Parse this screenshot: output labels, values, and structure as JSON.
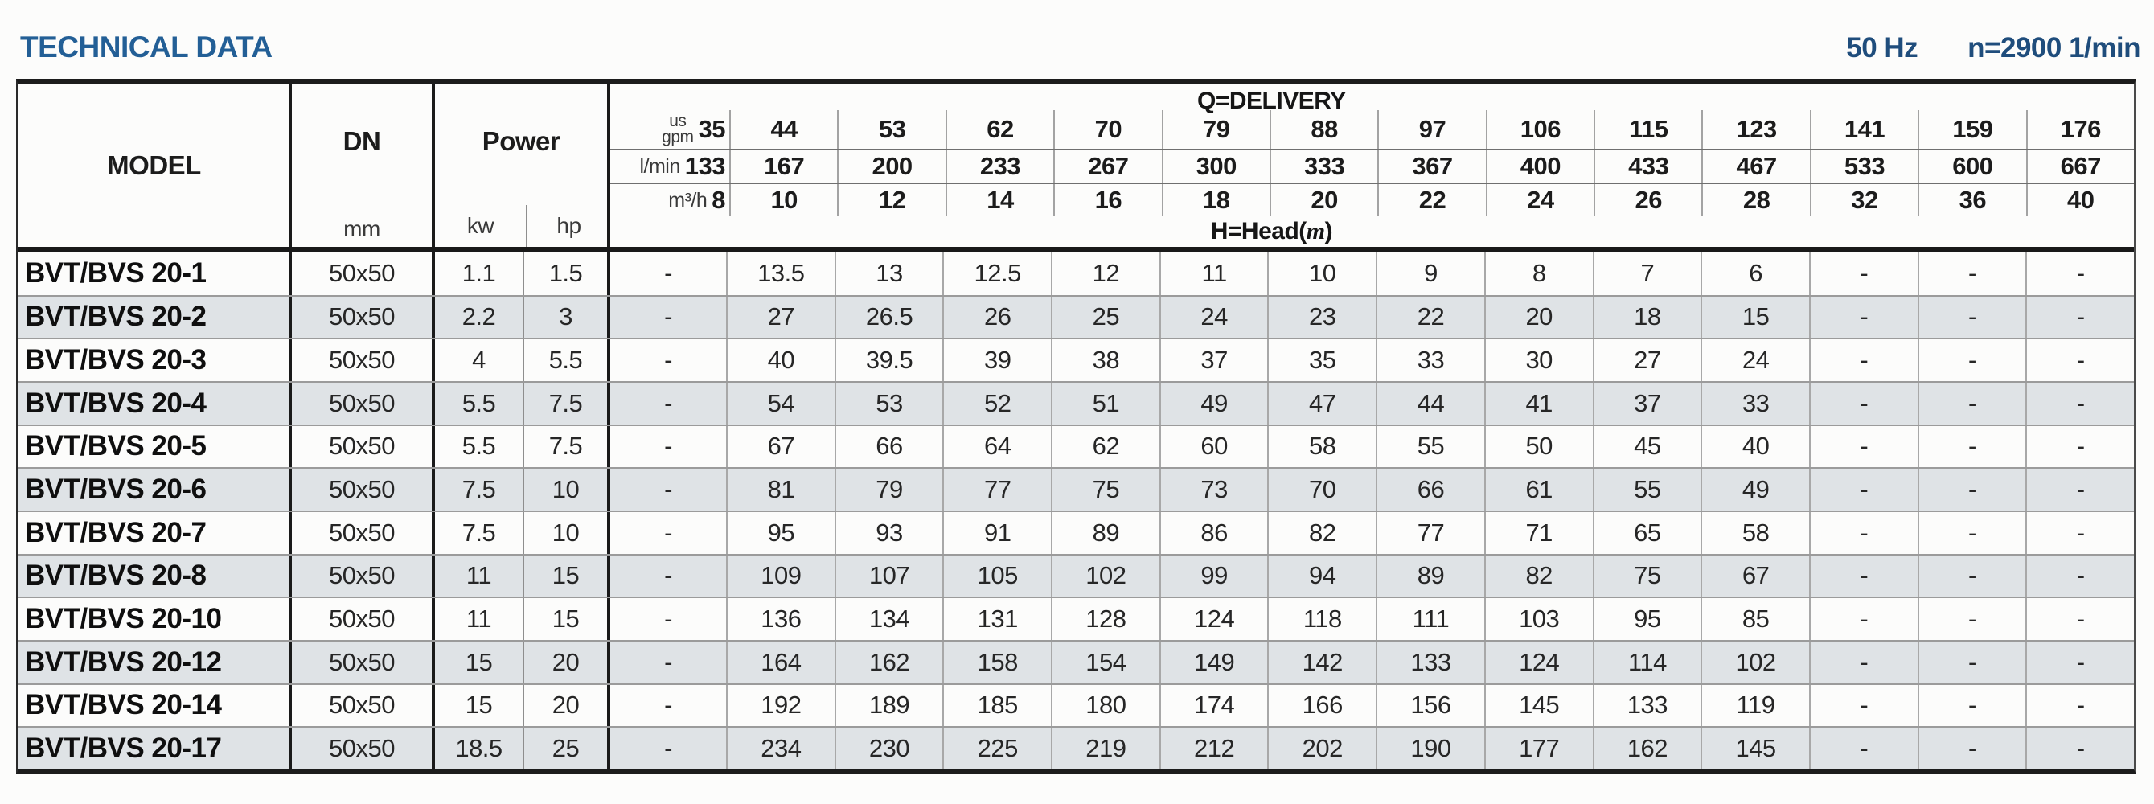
{
  "page": {
    "title": "TECHNICAL DATA",
    "frequency": "50 Hz",
    "speed": "n=2900 1/min"
  },
  "table": {
    "columns": {
      "model": "MODEL",
      "dn": "DN",
      "dn_unit": "mm",
      "power": "Power",
      "power_units": [
        "kw",
        "hp"
      ]
    },
    "delivery": {
      "label": "Q=DELIVERY",
      "head_label_prefix": "H=Head(",
      "head_label_unit": "m",
      "head_label_suffix": ")",
      "unit_rows": [
        {
          "unit_line1": "us",
          "unit_line2": "gpm",
          "values": [
            "35",
            "44",
            "53",
            "62",
            "70",
            "79",
            "88",
            "97",
            "106",
            "115",
            "123",
            "141",
            "159",
            "176"
          ]
        },
        {
          "unit": "l/min",
          "values": [
            "133",
            "167",
            "200",
            "233",
            "267",
            "300",
            "333",
            "367",
            "400",
            "433",
            "467",
            "533",
            "600",
            "667"
          ]
        },
        {
          "unit": "m³/h",
          "values": [
            "8",
            "10",
            "12",
            "14",
            "16",
            "18",
            "20",
            "22",
            "24",
            "26",
            "28",
            "32",
            "36",
            "40"
          ]
        }
      ]
    },
    "rows": [
      {
        "model": "BVT/BVS 20-1",
        "dn": "50x50",
        "kw": "1.1",
        "hp": "1.5",
        "head": [
          "-",
          "13.5",
          "13",
          "12.5",
          "12",
          "11",
          "10",
          "9",
          "8",
          "7",
          "6",
          "-",
          "-",
          "-"
        ]
      },
      {
        "model": "BVT/BVS 20-2",
        "dn": "50x50",
        "kw": "2.2",
        "hp": "3",
        "head": [
          "-",
          "27",
          "26.5",
          "26",
          "25",
          "24",
          "23",
          "22",
          "20",
          "18",
          "15",
          "-",
          "-",
          "-"
        ]
      },
      {
        "model": "BVT/BVS 20-3",
        "dn": "50x50",
        "kw": "4",
        "hp": "5.5",
        "head": [
          "-",
          "40",
          "39.5",
          "39",
          "38",
          "37",
          "35",
          "33",
          "30",
          "27",
          "24",
          "-",
          "-",
          "-"
        ]
      },
      {
        "model": "BVT/BVS 20-4",
        "dn": "50x50",
        "kw": "5.5",
        "hp": "7.5",
        "head": [
          "-",
          "54",
          "53",
          "52",
          "51",
          "49",
          "47",
          "44",
          "41",
          "37",
          "33",
          "-",
          "-",
          "-"
        ]
      },
      {
        "model": "BVT/BVS 20-5",
        "dn": "50x50",
        "kw": "5.5",
        "hp": "7.5",
        "head": [
          "-",
          "67",
          "66",
          "64",
          "62",
          "60",
          "58",
          "55",
          "50",
          "45",
          "40",
          "-",
          "-",
          "-"
        ]
      },
      {
        "model": "BVT/BVS 20-6",
        "dn": "50x50",
        "kw": "7.5",
        "hp": "10",
        "head": [
          "-",
          "81",
          "79",
          "77",
          "75",
          "73",
          "70",
          "66",
          "61",
          "55",
          "49",
          "-",
          "-",
          "-"
        ]
      },
      {
        "model": "BVT/BVS 20-7",
        "dn": "50x50",
        "kw": "7.5",
        "hp": "10",
        "head": [
          "-",
          "95",
          "93",
          "91",
          "89",
          "86",
          "82",
          "77",
          "71",
          "65",
          "58",
          "-",
          "-",
          "-"
        ]
      },
      {
        "model": "BVT/BVS 20-8",
        "dn": "50x50",
        "kw": "11",
        "hp": "15",
        "head": [
          "-",
          "109",
          "107",
          "105",
          "102",
          "99",
          "94",
          "89",
          "82",
          "75",
          "67",
          "-",
          "-",
          "-"
        ]
      },
      {
        "model": "BVT/BVS 20-10",
        "dn": "50x50",
        "kw": "11",
        "hp": "15",
        "head": [
          "-",
          "136",
          "134",
          "131",
          "128",
          "124",
          "118",
          "111",
          "103",
          "95",
          "85",
          "-",
          "-",
          "-"
        ]
      },
      {
        "model": "BVT/BVS 20-12",
        "dn": "50x50",
        "kw": "15",
        "hp": "20",
        "head": [
          "-",
          "164",
          "162",
          "158",
          "154",
          "149",
          "142",
          "133",
          "124",
          "114",
          "102",
          "-",
          "-",
          "-"
        ]
      },
      {
        "model": "BVT/BVS 20-14",
        "dn": "50x50",
        "kw": "15",
        "hp": "20",
        "head": [
          "-",
          "192",
          "189",
          "185",
          "180",
          "174",
          "166",
          "156",
          "145",
          "133",
          "119",
          "-",
          "-",
          "-"
        ]
      },
      {
        "model": "BVT/BVS 20-17",
        "dn": "50x50",
        "kw": "18.5",
        "hp": "25",
        "head": [
          "-",
          "234",
          "230",
          "225",
          "219",
          "212",
          "202",
          "190",
          "177",
          "162",
          "145",
          "-",
          "-",
          "-"
        ]
      }
    ]
  }
}
